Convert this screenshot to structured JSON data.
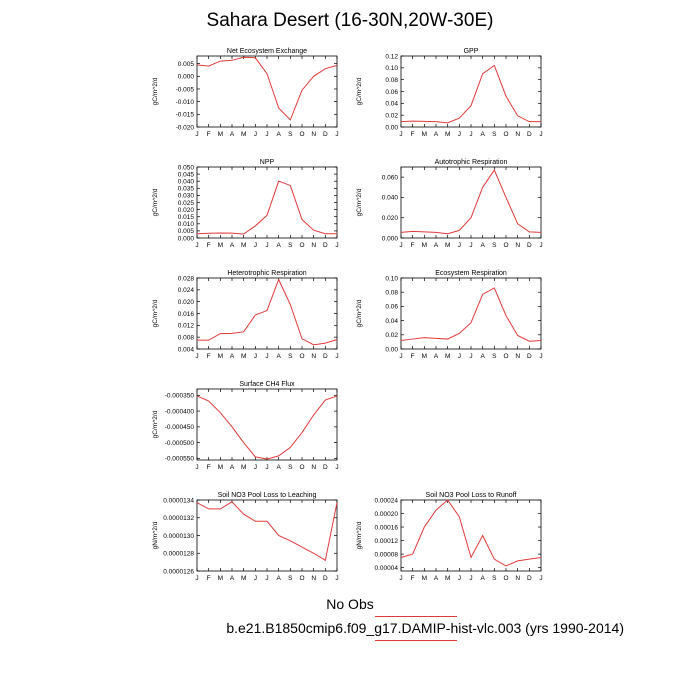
{
  "title": "Sahara Desert (16-30N,20W-30E)",
  "legend": {
    "label": "No Obs",
    "color": "#e03a3a"
  },
  "case": "b.e21.B1850cmip6.f09_g17.DAMIP-hist-vlc.003 (yrs 1990-2014)",
  "line_color": "#e03a3a",
  "chart_data": [
    {
      "type": "line",
      "title": "Net Ecosystem Exchange",
      "ylabel": "gC/m^2/d",
      "x": [
        "J",
        "F",
        "M",
        "A",
        "M",
        "J",
        "J",
        "A",
        "S",
        "O",
        "N",
        "D",
        "J"
      ],
      "ylim": [
        -0.02,
        0.008
      ],
      "yticks": [
        0.005,
        0.0,
        -0.005,
        -0.01,
        -0.015,
        -0.02
      ],
      "yticklabels": [
        "0.005",
        "0.000",
        "-0.005",
        "-0.010",
        "-0.015",
        "-0.020"
      ],
      "values": [
        0.0045,
        0.004,
        0.006,
        0.0063,
        0.0075,
        0.0073,
        0.001,
        -0.0125,
        -0.0172,
        -0.0055,
        0.0,
        0.003,
        0.0043
      ]
    },
    {
      "type": "line",
      "title": "GPP",
      "ylabel": "gC/m^2/d",
      "x": [
        "J",
        "F",
        "M",
        "A",
        "M",
        "J",
        "J",
        "A",
        "S",
        "O",
        "N",
        "D",
        "J"
      ],
      "ylim": [
        0.0,
        0.12
      ],
      "yticks": [
        0.0,
        0.02,
        0.04,
        0.06,
        0.08,
        0.1,
        0.12
      ],
      "yticklabels": [
        "0.00",
        "0.02",
        "0.04",
        "0.06",
        "0.08",
        "0.10",
        "0.12"
      ],
      "values": [
        0.009,
        0.01,
        0.0095,
        0.009,
        0.007,
        0.015,
        0.036,
        0.09,
        0.104,
        0.052,
        0.019,
        0.009,
        0.009
      ]
    },
    {
      "type": "line",
      "title": "NPP",
      "ylabel": "gC/m^2/d",
      "x": [
        "J",
        "F",
        "M",
        "A",
        "M",
        "J",
        "J",
        "A",
        "S",
        "O",
        "N",
        "D",
        "J"
      ],
      "ylim": [
        0.0,
        0.05
      ],
      "yticks": [
        0.0,
        0.005,
        0.01,
        0.015,
        0.02,
        0.025,
        0.03,
        0.035,
        0.04,
        0.045,
        0.05
      ],
      "yticklabels": [
        "0.000",
        "0.005",
        "0.010",
        "0.015",
        "0.020",
        "0.025",
        "0.030",
        "0.035",
        "0.040",
        "0.045",
        "0.050"
      ],
      "values": [
        0.003,
        0.0033,
        0.0035,
        0.0034,
        0.0028,
        0.0085,
        0.016,
        0.04,
        0.037,
        0.013,
        0.0055,
        0.003,
        0.003
      ]
    },
    {
      "type": "line",
      "title": "Autotrophic Respiration",
      "ylabel": "gC/m^2/d",
      "x": [
        "J",
        "F",
        "M",
        "A",
        "M",
        "J",
        "J",
        "A",
        "S",
        "O",
        "N",
        "D",
        "J"
      ],
      "ylim": [
        0.0,
        0.07
      ],
      "yticks": [
        0.0,
        0.02,
        0.04,
        0.06
      ],
      "yticklabels": [
        "0.000",
        "0.020",
        "0.040",
        "0.060"
      ],
      "values": [
        0.0055,
        0.0065,
        0.006,
        0.0055,
        0.0042,
        0.0075,
        0.02,
        0.05,
        0.067,
        0.04,
        0.014,
        0.006,
        0.0055
      ]
    },
    {
      "type": "line",
      "title": "Heterotrophic Respiration",
      "ylabel": "gC/m^2/d",
      "x": [
        "J",
        "F",
        "M",
        "A",
        "M",
        "J",
        "J",
        "A",
        "S",
        "O",
        "N",
        "D",
        "J"
      ],
      "ylim": [
        0.004,
        0.028
      ],
      "yticks": [
        0.004,
        0.008,
        0.012,
        0.016,
        0.02,
        0.024,
        0.028
      ],
      "yticklabels": [
        "0.004",
        "0.008",
        "0.012",
        "0.016",
        "0.020",
        "0.024",
        "0.028"
      ],
      "values": [
        0.007,
        0.007,
        0.0092,
        0.0093,
        0.0098,
        0.0155,
        0.017,
        0.0275,
        0.019,
        0.0075,
        0.0054,
        0.006,
        0.0072
      ]
    },
    {
      "type": "line",
      "title": "Ecosystem Respiration",
      "ylabel": "gC/m^2/d",
      "x": [
        "J",
        "F",
        "M",
        "A",
        "M",
        "J",
        "J",
        "A",
        "S",
        "O",
        "N",
        "D",
        "J"
      ],
      "ylim": [
        0.0,
        0.1
      ],
      "yticks": [
        0.0,
        0.02,
        0.04,
        0.06,
        0.08,
        0.1
      ],
      "yticklabels": [
        "0.00",
        "0.02",
        "0.04",
        "0.06",
        "0.08",
        "0.10"
      ],
      "values": [
        0.012,
        0.014,
        0.016,
        0.015,
        0.014,
        0.022,
        0.037,
        0.077,
        0.086,
        0.047,
        0.019,
        0.011,
        0.012
      ]
    },
    {
      "type": "line",
      "title": "Surface CH4 Flux",
      "ylabel": "gC/m^2/d",
      "x": [
        "J",
        "F",
        "M",
        "A",
        "M",
        "J",
        "J",
        "A",
        "S",
        "O",
        "N",
        "D",
        "J"
      ],
      "ylim": [
        -0.000555,
        -0.00033
      ],
      "yticks": [
        -0.00035,
        -0.0004,
        -0.00045,
        -0.0005,
        -0.00055
      ],
      "yticklabels": [
        "-0.000350",
        "-0.000400",
        "-0.000450",
        "-0.000500",
        "-0.000550"
      ],
      "values": [
        -0.000352,
        -0.000368,
        -0.000405,
        -0.00045,
        -0.0005,
        -0.000545,
        -0.000552,
        -0.000542,
        -0.000515,
        -0.000468,
        -0.000412,
        -0.000365,
        -0.000352
      ]
    },
    {
      "type": "line",
      "title": "Soil NO3 Pool Loss to Leaching",
      "ylabel": "gN/m^2/d",
      "x": [
        "J",
        "F",
        "M",
        "A",
        "M",
        "J",
        "J",
        "A",
        "S",
        "O",
        "N",
        "D",
        "J"
      ],
      "ylim": [
        1.26e-05,
        1.34e-05
      ],
      "yticks": [
        1.34e-05,
        1.32e-05,
        1.3e-05,
        1.28e-05,
        1.26e-05
      ],
      "yticklabels": [
        "0.0000134",
        "0.0000132",
        "0.0000130",
        "0.0000128",
        "0.0000126"
      ],
      "values": [
        1.337e-05,
        1.33e-05,
        1.33e-05,
        1.338e-05,
        1.324e-05,
        1.316e-05,
        1.316e-05,
        1.3e-05,
        1.294e-05,
        1.287e-05,
        1.28e-05,
        1.272e-05,
        1.337e-05
      ]
    },
    {
      "type": "line",
      "title": "Soil NO3 Pool Loss to Runoff",
      "ylabel": "gN/m^2/d",
      "x": [
        "J",
        "F",
        "M",
        "A",
        "M",
        "J",
        "J",
        "A",
        "S",
        "O",
        "N",
        "D",
        "J"
      ],
      "ylim": [
        3e-05,
        0.00024
      ],
      "yticks": [
        4e-05,
        8e-05,
        0.00012,
        0.00016,
        0.0002,
        0.00024
      ],
      "yticklabels": [
        "0.00004",
        "0.00008",
        "0.00012",
        "0.00016",
        "0.00020",
        "0.00024"
      ],
      "values": [
        7e-05,
        8e-05,
        0.00016,
        0.00021,
        0.00024,
        0.00019,
        7e-05,
        0.000135,
        6.5e-05,
        4.5e-05,
        6e-05,
        6.5e-05,
        7e-05
      ]
    }
  ]
}
